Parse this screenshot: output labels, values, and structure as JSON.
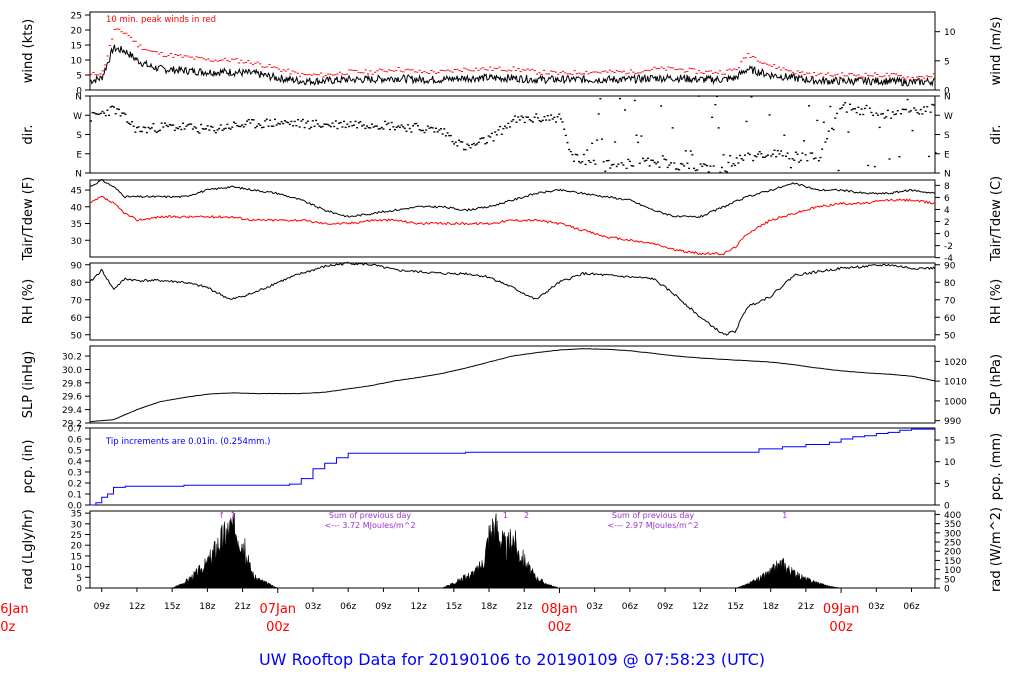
{
  "title": "UW Rooftop Data for 20190106  to  20190109 @ 07:58:23  (UTC)",
  "colors": {
    "title": "#0000ff",
    "peak": "#ff0000",
    "dew": "#ff0000",
    "precip": "#0000ff",
    "annot": "#9933cc",
    "day": "#ff0000",
    "line": "#000000"
  },
  "time_axis": {
    "hours_since": "2019-01-06 08:00 UTC",
    "range": [
      0,
      72
    ],
    "ticks": [
      {
        "t": 1,
        "label": "09z"
      },
      {
        "t": 4,
        "label": "12z"
      },
      {
        "t": 7,
        "label": "15z"
      },
      {
        "t": 10,
        "label": "18z"
      },
      {
        "t": 13,
        "label": "21z"
      },
      {
        "t": 19,
        "label": "03z"
      },
      {
        "t": 22,
        "label": "06z"
      },
      {
        "t": 25,
        "label": "09z"
      },
      {
        "t": 28,
        "label": "12z"
      },
      {
        "t": 31,
        "label": "15z"
      },
      {
        "t": 34,
        "label": "18z"
      },
      {
        "t": 37,
        "label": "21z"
      },
      {
        "t": 43,
        "label": "03z"
      },
      {
        "t": 46,
        "label": "06z"
      },
      {
        "t": 49,
        "label": "09z"
      },
      {
        "t": 52,
        "label": "12z"
      },
      {
        "t": 55,
        "label": "15z"
      },
      {
        "t": 58,
        "label": "18z"
      },
      {
        "t": 61,
        "label": "21z"
      },
      {
        "t": 67,
        "label": "03z"
      },
      {
        "t": 70,
        "label": "06z"
      }
    ],
    "day_marks": [
      {
        "t": 16,
        "date": "07Jan",
        "hour": "00z"
      },
      {
        "t": 40,
        "date": "08Jan",
        "hour": "00z"
      },
      {
        "t": 64,
        "date": "09Jan",
        "hour": "00z"
      }
    ],
    "edge_marks": {
      "date": "06Jan",
      "hour": "00z"
    }
  },
  "panels": {
    "wind": {
      "ylabel_left": "wind (kts)",
      "ylabel_right": "wind (m/s)",
      "left_ticks": [
        "0",
        "5",
        "10",
        "15",
        "20",
        "25"
      ],
      "right_ticks": [
        "0",
        "5",
        "10"
      ],
      "note": "10 min. peak winds in red"
    },
    "dir": {
      "ylabel_left": "dir.",
      "ylabel_right": "dir.",
      "left_ticks": [
        "N",
        "E",
        "S",
        "W",
        "N"
      ],
      "right_ticks": [
        "N",
        "E",
        "S",
        "W",
        "N"
      ]
    },
    "temp": {
      "ylabel_left": "Tair/Tdew (F)",
      "ylabel_right": "Tair/Tdew (C)",
      "left_ticks": [
        "30",
        "35",
        "40",
        "45"
      ],
      "right_ticks": [
        "-4",
        "-2",
        "0",
        "2",
        "4",
        "6",
        "8"
      ]
    },
    "rh": {
      "ylabel_left": "RH (%)",
      "ylabel_right": "RH (%)",
      "left_ticks": [
        "50",
        "60",
        "70",
        "80",
        "90"
      ],
      "right_ticks": [
        "50",
        "60",
        "70",
        "80",
        "90"
      ]
    },
    "slp": {
      "ylabel_left": "SLP (inHg)",
      "ylabel_right": "SLP (hPa)",
      "left_ticks": [
        "29.2",
        "29.4",
        "29.6",
        "29.8",
        "30.0",
        "30.2"
      ],
      "right_ticks": [
        "990",
        "1000",
        "1010",
        "1020"
      ]
    },
    "pcp": {
      "ylabel_left": "pcp. (in)",
      "ylabel_right": "pcp. (mm)",
      "left_ticks": [
        "0.0",
        "0.1",
        "0.2",
        "0.3",
        "0.4",
        "0.5",
        "0.6",
        "0.7"
      ],
      "right_ticks": [
        "0",
        "5",
        "10",
        "15"
      ],
      "note": "Tip increments are 0.01in. (0.254mm.)"
    },
    "rad": {
      "ylabel_left": "rad (Lgly/hr)",
      "ylabel_right": "rad (W/m^2)",
      "left_ticks": [
        "0",
        "5",
        "10",
        "15",
        "20",
        "25",
        "30",
        "35"
      ],
      "right_ticks": [
        "0",
        "50",
        "100",
        "150",
        "200",
        "250",
        "300",
        "350",
        "400"
      ],
      "sums": [
        {
          "line1": "Sum of previous day",
          "line2": "<--- 3.72 MJoules/m^2"
        },
        {
          "line1": "Sum of previous day",
          "line2": "<--- 2.97 MJoules/m^2"
        }
      ],
      "flags": [
        "f",
        "1",
        "1",
        "2",
        "1"
      ]
    }
  },
  "chart_data": [
    {
      "type": "line",
      "title": "",
      "xlabel": "",
      "ylabel": "wind (kts)",
      "ylim": [
        0,
        26
      ],
      "series": [
        {
          "name": "wind",
          "x": [
            0,
            1,
            2,
            3,
            4,
            5,
            6,
            8,
            10,
            12,
            14,
            16,
            18,
            20,
            22,
            24,
            26,
            28,
            30,
            32,
            34,
            36,
            38,
            40,
            42,
            44,
            46,
            48,
            50,
            52,
            54,
            55,
            56,
            57,
            58,
            60,
            62,
            64,
            66,
            68,
            70,
            72
          ],
          "values": [
            3,
            4,
            14,
            13,
            10,
            8,
            7,
            6.5,
            6,
            6,
            5.5,
            4,
            3,
            3,
            3.5,
            3.5,
            4,
            3.5,
            3.5,
            4,
            4,
            4,
            3.5,
            3.5,
            3.5,
            3.5,
            3.5,
            4,
            4,
            3.5,
            3.5,
            4,
            7,
            6,
            5,
            4,
            3,
            3,
            3,
            3,
            2.5,
            3
          ]
        },
        {
          "name": "10 min. peak winds in red",
          "x": [
            0,
            1,
            2,
            3,
            4,
            5,
            6,
            8,
            10,
            12,
            14,
            16,
            18,
            20,
            22,
            24,
            26,
            28,
            30,
            32,
            34,
            36,
            38,
            40,
            42,
            44,
            46,
            48,
            50,
            52,
            54,
            55,
            56,
            57,
            58,
            60,
            62,
            64,
            66,
            68,
            70,
            72
          ],
          "values": [
            5,
            6,
            20,
            19,
            15,
            13,
            12,
            11,
            10,
            10,
            9,
            7,
            5,
            5,
            6,
            6,
            7,
            6,
            6,
            7,
            7,
            7,
            6,
            5.5,
            6,
            6,
            6,
            7,
            7,
            6,
            6,
            7,
            12,
            10,
            8,
            6,
            5,
            5,
            5,
            5,
            4,
            5
          ]
        }
      ]
    },
    {
      "type": "scatter",
      "title": "",
      "xlabel": "",
      "ylabel": "dir.",
      "ylim": [
        0,
        360
      ],
      "series": [
        {
          "name": "dir.",
          "x": [
            0,
            2,
            4,
            6,
            8,
            10,
            12,
            14,
            16,
            18,
            20,
            22,
            24,
            26,
            28,
            30,
            32,
            34,
            36,
            38,
            40,
            41,
            44,
            48,
            52,
            54,
            56,
            58,
            60,
            62,
            64,
            66,
            68,
            70,
            72
          ],
          "values": [
            260,
            300,
            200,
            215,
            215,
            200,
            220,
            230,
            235,
            230,
            225,
            230,
            230,
            220,
            210,
            195,
            115,
            160,
            245,
            255,
            260,
            70,
            40,
            50,
            20,
            20,
            90,
            90,
            80,
            70,
            310,
            290,
            275,
            290,
            300
          ]
        }
      ]
    },
    {
      "type": "line",
      "title": "",
      "xlabel": "",
      "ylabel": "Tair/Tdew (F)",
      "ylim": [
        25,
        48
      ],
      "series": [
        {
          "name": "Tair",
          "x": [
            0,
            1,
            2,
            3,
            4,
            6,
            8,
            10,
            12,
            14,
            16,
            18,
            20,
            22,
            24,
            26,
            28,
            30,
            32,
            34,
            36,
            38,
            40,
            42,
            44,
            46,
            48,
            50,
            52,
            54,
            56,
            58,
            60,
            62,
            64,
            66,
            68,
            70,
            72
          ],
          "values": [
            46,
            48,
            46,
            43,
            43,
            43,
            43,
            45,
            46,
            45,
            44,
            42,
            39,
            37,
            38,
            39,
            40,
            40,
            39,
            40,
            42,
            44,
            45,
            44,
            43,
            42,
            39,
            37,
            37,
            40,
            43,
            45,
            47,
            45,
            45,
            44,
            44,
            45,
            44
          ]
        },
        {
          "name": "Tdew",
          "x": [
            0,
            1,
            2,
            3,
            4,
            6,
            8,
            10,
            12,
            14,
            16,
            18,
            20,
            22,
            24,
            26,
            28,
            30,
            32,
            34,
            36,
            38,
            40,
            42,
            44,
            46,
            48,
            50,
            52,
            54,
            55,
            56,
            58,
            60,
            62,
            64,
            66,
            68,
            70,
            72
          ],
          "values": [
            41,
            43,
            41,
            38,
            36,
            37,
            37,
            37,
            37,
            36,
            36,
            36,
            35,
            35,
            36,
            36,
            35,
            35,
            35,
            35,
            36,
            36,
            35,
            33,
            31,
            30,
            29,
            27,
            26,
            26,
            28,
            32,
            36,
            38,
            40,
            41,
            41,
            42,
            42,
            41
          ]
        }
      ]
    },
    {
      "type": "line",
      "title": "",
      "xlabel": "",
      "ylabel": "RH (%)",
      "ylim": [
        47,
        91
      ],
      "series": [
        {
          "name": "RH",
          "x": [
            0,
            1,
            2,
            3,
            4,
            6,
            8,
            10,
            12,
            14,
            16,
            18,
            20,
            22,
            24,
            26,
            28,
            30,
            32,
            34,
            36,
            38,
            40,
            42,
            44,
            46,
            48,
            50,
            52,
            54,
            55,
            56,
            58,
            60,
            62,
            64,
            66,
            68,
            70,
            72
          ],
          "values": [
            80,
            87,
            76,
            82,
            81,
            81,
            80,
            77,
            70,
            74,
            80,
            85,
            89,
            91,
            90,
            87,
            86,
            85,
            85,
            83,
            77,
            70,
            80,
            85,
            84,
            83,
            82,
            72,
            60,
            50,
            52,
            66,
            72,
            84,
            86,
            88,
            89,
            90,
            88,
            88
          ]
        }
      ]
    },
    {
      "type": "line",
      "title": "",
      "xlabel": "",
      "ylabel": "SLP (inHg)",
      "ylim": [
        29.2,
        30.35
      ],
      "series": [
        {
          "name": "SLP",
          "x": [
            0,
            2,
            4,
            6,
            8,
            10,
            12,
            14,
            16,
            18,
            20,
            22,
            24,
            26,
            28,
            30,
            32,
            34,
            36,
            38,
            40,
            42,
            44,
            46,
            48,
            50,
            52,
            54,
            56,
            58,
            60,
            62,
            64,
            66,
            68,
            70,
            72
          ],
          "values": [
            29.22,
            29.25,
            29.4,
            29.52,
            29.58,
            29.63,
            29.65,
            29.64,
            29.64,
            29.64,
            29.66,
            29.71,
            29.76,
            29.83,
            29.88,
            29.94,
            30.02,
            30.11,
            30.2,
            30.25,
            30.29,
            30.31,
            30.3,
            30.28,
            30.24,
            30.2,
            30.17,
            30.15,
            30.13,
            30.11,
            30.07,
            30.02,
            29.98,
            29.95,
            29.93,
            29.9,
            29.83
          ]
        }
      ]
    },
    {
      "type": "line",
      "title": "",
      "xlabel": "",
      "ylabel": "pcp. (in)",
      "ylim": [
        0,
        0.7
      ],
      "series": [
        {
          "name": "pcp.",
          "x": [
            0,
            0.5,
            1,
            1.5,
            2,
            3,
            5,
            8,
            12,
            16,
            17,
            18,
            19,
            20,
            21,
            22,
            26,
            32,
            40,
            48,
            56,
            57,
            59,
            61,
            63,
            64,
            65,
            66,
            67,
            68,
            69,
            70,
            72
          ],
          "values": [
            0,
            0.02,
            0.07,
            0.1,
            0.16,
            0.17,
            0.17,
            0.18,
            0.18,
            0.18,
            0.19,
            0.24,
            0.33,
            0.38,
            0.43,
            0.47,
            0.47,
            0.48,
            0.48,
            0.48,
            0.48,
            0.51,
            0.53,
            0.55,
            0.57,
            0.6,
            0.62,
            0.63,
            0.65,
            0.66,
            0.68,
            0.69,
            0.7
          ]
        }
      ]
    },
    {
      "type": "area",
      "title": "",
      "xlabel": "",
      "ylabel": "rad (Lgly/hr)",
      "ylim": [
        0,
        36
      ],
      "series": [
        {
          "name": "rad",
          "x": [
            7,
            8,
            9,
            10,
            10.5,
            11,
            11.5,
            12,
            12.5,
            13,
            13.5,
            14,
            15,
            16,
            30,
            31,
            32,
            33,
            33.5,
            34,
            34.5,
            35,
            35.5,
            36,
            36.5,
            37,
            37.5,
            38,
            39,
            40,
            55,
            56,
            57,
            58,
            58.5,
            59,
            59.5,
            60,
            61,
            62,
            63,
            64
          ],
          "values": [
            0,
            3,
            8,
            14,
            20,
            26,
            30,
            34,
            33,
            26,
            14,
            6,
            3,
            0,
            0,
            3,
            6,
            10,
            14,
            30,
            36,
            28,
            22,
            30,
            20,
            16,
            10,
            6,
            2,
            0,
            0,
            2,
            5,
            9,
            12,
            14,
            11,
            8,
            5,
            3,
            1,
            0
          ]
        }
      ]
    }
  ]
}
